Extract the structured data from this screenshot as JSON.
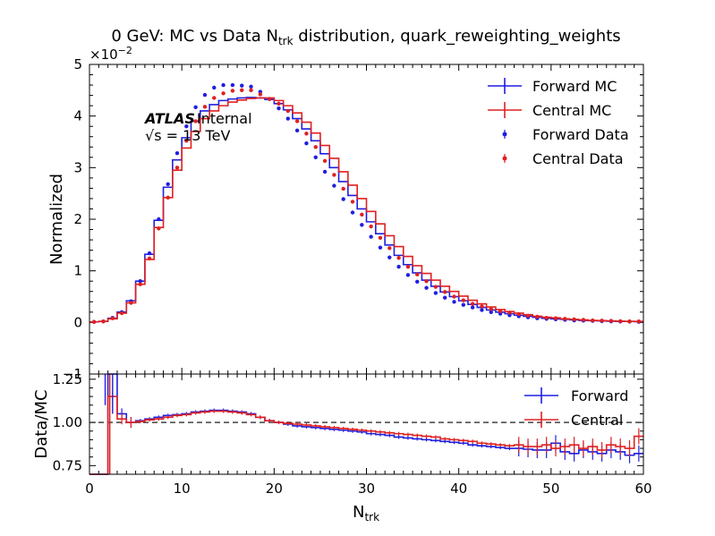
{
  "chart_data": [
    {
      "type": "line",
      "title": "0 GeV: MC vs Data N",
      "title_sub": "trk",
      "title_tail": " distribution, quark_reweighting_weights",
      "ylabel": "Normalized",
      "y_multiplier_base": "×10",
      "y_multiplier_exp": "−2",
      "xlim": [
        0,
        60
      ],
      "ylim": [
        -1,
        5
      ],
      "yticks": [
        "−1",
        "0",
        "1",
        "2",
        "3",
        "4",
        "5"
      ],
      "experiment_label": "ATLAS",
      "experiment_status": "Internal",
      "energy_label": "√s = 13 TeV",
      "legend_placement": "top-right",
      "series": [
        {
          "name": "Forward MC",
          "style": "step",
          "color": "#1f1fe0",
          "x": [
            0,
            1,
            2,
            3,
            4,
            5,
            6,
            7,
            8,
            9,
            10,
            11,
            12,
            13,
            14,
            15,
            16,
            17,
            18,
            19,
            20,
            21,
            22,
            23,
            24,
            25,
            26,
            27,
            28,
            29,
            30,
            31,
            32,
            33,
            34,
            35,
            36,
            37,
            38,
            39,
            40,
            41,
            42,
            43,
            44,
            45,
            46,
            47,
            48,
            49,
            50,
            51,
            52,
            53,
            54,
            55,
            56,
            57,
            58,
            59
          ],
          "values": [
            0.01,
            0.02,
            0.08,
            0.2,
            0.42,
            0.8,
            1.32,
            1.98,
            2.62,
            3.15,
            3.58,
            3.9,
            4.1,
            4.22,
            4.3,
            4.33,
            4.35,
            4.36,
            4.35,
            4.32,
            4.24,
            4.12,
            3.95,
            3.75,
            3.52,
            3.27,
            3.0,
            2.73,
            2.46,
            2.2,
            1.95,
            1.72,
            1.5,
            1.3,
            1.12,
            0.96,
            0.82,
            0.7,
            0.59,
            0.5,
            0.42,
            0.35,
            0.29,
            0.24,
            0.2,
            0.17,
            0.14,
            0.12,
            0.1,
            0.08,
            0.07,
            0.06,
            0.05,
            0.04,
            0.035,
            0.03,
            0.025,
            0.02,
            0.02,
            0.015
          ]
        },
        {
          "name": "Central MC",
          "style": "step",
          "color": "#e02020",
          "x": [
            0,
            1,
            2,
            3,
            4,
            5,
            6,
            7,
            8,
            9,
            10,
            11,
            12,
            13,
            14,
            15,
            16,
            17,
            18,
            19,
            20,
            21,
            22,
            23,
            24,
            25,
            26,
            27,
            28,
            29,
            30,
            31,
            32,
            33,
            34,
            35,
            36,
            37,
            38,
            39,
            40,
            41,
            42,
            43,
            44,
            45,
            46,
            47,
            48,
            49,
            50,
            51,
            52,
            53,
            54,
            55,
            56,
            57,
            58,
            59
          ],
          "values": [
            0.01,
            0.02,
            0.07,
            0.18,
            0.38,
            0.74,
            1.22,
            1.84,
            2.42,
            2.95,
            3.38,
            3.7,
            3.95,
            4.1,
            4.2,
            4.27,
            4.31,
            4.34,
            4.35,
            4.35,
            4.3,
            4.2,
            4.06,
            3.88,
            3.67,
            3.43,
            3.18,
            2.92,
            2.66,
            2.4,
            2.15,
            1.91,
            1.68,
            1.47,
            1.28,
            1.1,
            0.95,
            0.82,
            0.7,
            0.6,
            0.51,
            0.43,
            0.36,
            0.3,
            0.25,
            0.21,
            0.18,
            0.15,
            0.12,
            0.1,
            0.09,
            0.07,
            0.06,
            0.05,
            0.04,
            0.035,
            0.03,
            0.025,
            0.02,
            0.02
          ]
        },
        {
          "name": "Forward Data",
          "style": "points",
          "color": "#1f1fe0",
          "x": [
            0.5,
            1.5,
            2.5,
            3.5,
            4.5,
            5.5,
            6.5,
            7.5,
            8.5,
            9.5,
            10.5,
            11.5,
            12.5,
            13.5,
            14.5,
            15.5,
            16.5,
            17.5,
            18.5,
            19.5,
            20.5,
            21.5,
            22.5,
            23.5,
            24.5,
            25.5,
            26.5,
            27.5,
            28.5,
            29.5,
            30.5,
            31.5,
            32.5,
            33.5,
            34.5,
            35.5,
            36.5,
            37.5,
            38.5,
            39.5,
            40.5,
            41.5,
            42.5,
            43.5,
            44.5,
            45.5,
            46.5,
            47.5,
            48.5,
            49.5,
            50.5,
            51.5,
            52.5,
            53.5,
            54.5,
            55.5,
            56.5,
            57.5,
            58.5,
            59.5
          ],
          "values": [
            0.01,
            0.02,
            0.09,
            0.2,
            0.41,
            0.8,
            1.34,
            2.0,
            2.68,
            3.28,
            3.8,
            4.17,
            4.41,
            4.55,
            4.6,
            4.6,
            4.59,
            4.57,
            4.47,
            4.33,
            4.15,
            3.95,
            3.72,
            3.47,
            3.2,
            2.92,
            2.65,
            2.39,
            2.13,
            1.89,
            1.66,
            1.45,
            1.26,
            1.08,
            0.92,
            0.79,
            0.67,
            0.57,
            0.48,
            0.4,
            0.34,
            0.29,
            0.24,
            0.2,
            0.17,
            0.14,
            0.12,
            0.1,
            0.08,
            0.07,
            0.06,
            0.05,
            0.04,
            0.035,
            0.03,
            0.025,
            0.02,
            0.017,
            0.015,
            0.012
          ]
        },
        {
          "name": "Central Data",
          "style": "points",
          "color": "#e02020",
          "x": [
            0.5,
            1.5,
            2.5,
            3.5,
            4.5,
            5.5,
            6.5,
            7.5,
            8.5,
            9.5,
            10.5,
            11.5,
            12.5,
            13.5,
            14.5,
            15.5,
            16.5,
            17.5,
            18.5,
            19.5,
            20.5,
            21.5,
            22.5,
            23.5,
            24.5,
            25.5,
            26.5,
            27.5,
            28.5,
            29.5,
            30.5,
            31.5,
            32.5,
            33.5,
            34.5,
            35.5,
            36.5,
            37.5,
            38.5,
            39.5,
            40.5,
            41.5,
            42.5,
            43.5,
            44.5,
            45.5,
            46.5,
            47.5,
            48.5,
            49.5,
            50.5,
            51.5,
            52.5,
            53.5,
            54.5,
            55.5,
            56.5,
            57.5,
            58.5,
            59.5
          ],
          "values": [
            0.01,
            0.02,
            0.08,
            0.18,
            0.38,
            0.74,
            1.24,
            1.82,
            2.42,
            3.0,
            3.52,
            3.9,
            4.18,
            4.35,
            4.44,
            4.49,
            4.5,
            4.5,
            4.42,
            4.33,
            4.24,
            4.1,
            3.9,
            3.66,
            3.4,
            3.13,
            2.86,
            2.59,
            2.34,
            2.09,
            1.86,
            1.64,
            1.44,
            1.25,
            1.08,
            0.93,
            0.8,
            0.69,
            0.59,
            0.5,
            0.43,
            0.36,
            0.31,
            0.26,
            0.22,
            0.19,
            0.16,
            0.13,
            0.11,
            0.09,
            0.08,
            0.07,
            0.06,
            0.05,
            0.04,
            0.035,
            0.03,
            0.025,
            0.02,
            0.02
          ]
        }
      ]
    },
    {
      "type": "line",
      "xlabel": "N",
      "xlabel_sub": "trk",
      "ylabel": "Data/MC",
      "xlim": [
        0,
        60
      ],
      "ylim": [
        0.7,
        1.28
      ],
      "xticks": [
        "0",
        "10",
        "20",
        "30",
        "40",
        "50",
        "60"
      ],
      "yticks": [
        "0.75",
        "1.00",
        "1.25"
      ],
      "reference_line": 1.0,
      "legend_placement": "top-right",
      "series": [
        {
          "name": "Forward",
          "style": "step",
          "color": "#1f1fe0",
          "x": [
            0,
            1,
            2,
            3,
            4,
            5,
            6,
            7,
            8,
            9,
            10,
            11,
            12,
            13,
            14,
            15,
            16,
            17,
            18,
            19,
            20,
            21,
            22,
            23,
            24,
            25,
            26,
            27,
            28,
            29,
            30,
            31,
            32,
            33,
            34,
            35,
            36,
            37,
            38,
            39,
            40,
            41,
            42,
            43,
            44,
            45,
            46,
            47,
            48,
            49,
            50,
            51,
            52,
            53,
            54,
            55,
            56,
            57,
            58,
            59
          ],
          "values": [
            0.55,
            0.6,
            1.6,
            1.05,
            1.0,
            1.01,
            1.02,
            1.03,
            1.04,
            1.045,
            1.05,
            1.06,
            1.065,
            1.07,
            1.07,
            1.065,
            1.06,
            1.05,
            1.03,
            1.01,
            1.0,
            0.99,
            0.98,
            0.975,
            0.97,
            0.965,
            0.96,
            0.955,
            0.95,
            0.945,
            0.935,
            0.93,
            0.925,
            0.915,
            0.91,
            0.905,
            0.9,
            0.895,
            0.89,
            0.885,
            0.88,
            0.87,
            0.865,
            0.86,
            0.855,
            0.85,
            0.85,
            0.845,
            0.84,
            0.84,
            0.88,
            0.83,
            0.82,
            0.84,
            0.83,
            0.82,
            0.84,
            0.83,
            0.81,
            0.82
          ]
        },
        {
          "name": "Central",
          "style": "step",
          "color": "#e02020",
          "x": [
            0,
            1,
            2,
            3,
            4,
            5,
            6,
            7,
            8,
            9,
            10,
            11,
            12,
            13,
            14,
            15,
            16,
            17,
            18,
            19,
            20,
            21,
            22,
            23,
            24,
            25,
            26,
            27,
            28,
            29,
            30,
            31,
            32,
            33,
            34,
            35,
            36,
            37,
            38,
            39,
            40,
            41,
            42,
            43,
            44,
            45,
            46,
            47,
            48,
            49,
            50,
            51,
            52,
            53,
            54,
            55,
            56,
            57,
            58,
            59
          ],
          "values": [
            0.55,
            0.6,
            1.15,
            1.02,
            1.0,
            1.005,
            1.015,
            1.02,
            1.03,
            1.04,
            1.045,
            1.055,
            1.06,
            1.065,
            1.065,
            1.06,
            1.055,
            1.045,
            1.03,
            1.01,
            1.0,
            0.995,
            0.99,
            0.985,
            0.98,
            0.975,
            0.97,
            0.965,
            0.96,
            0.955,
            0.95,
            0.945,
            0.94,
            0.935,
            0.93,
            0.925,
            0.92,
            0.915,
            0.905,
            0.9,
            0.895,
            0.89,
            0.88,
            0.875,
            0.87,
            0.865,
            0.87,
            0.86,
            0.86,
            0.87,
            0.85,
            0.86,
            0.87,
            0.85,
            0.86,
            0.84,
            0.87,
            0.86,
            0.85,
            0.92
          ]
        }
      ]
    }
  ]
}
